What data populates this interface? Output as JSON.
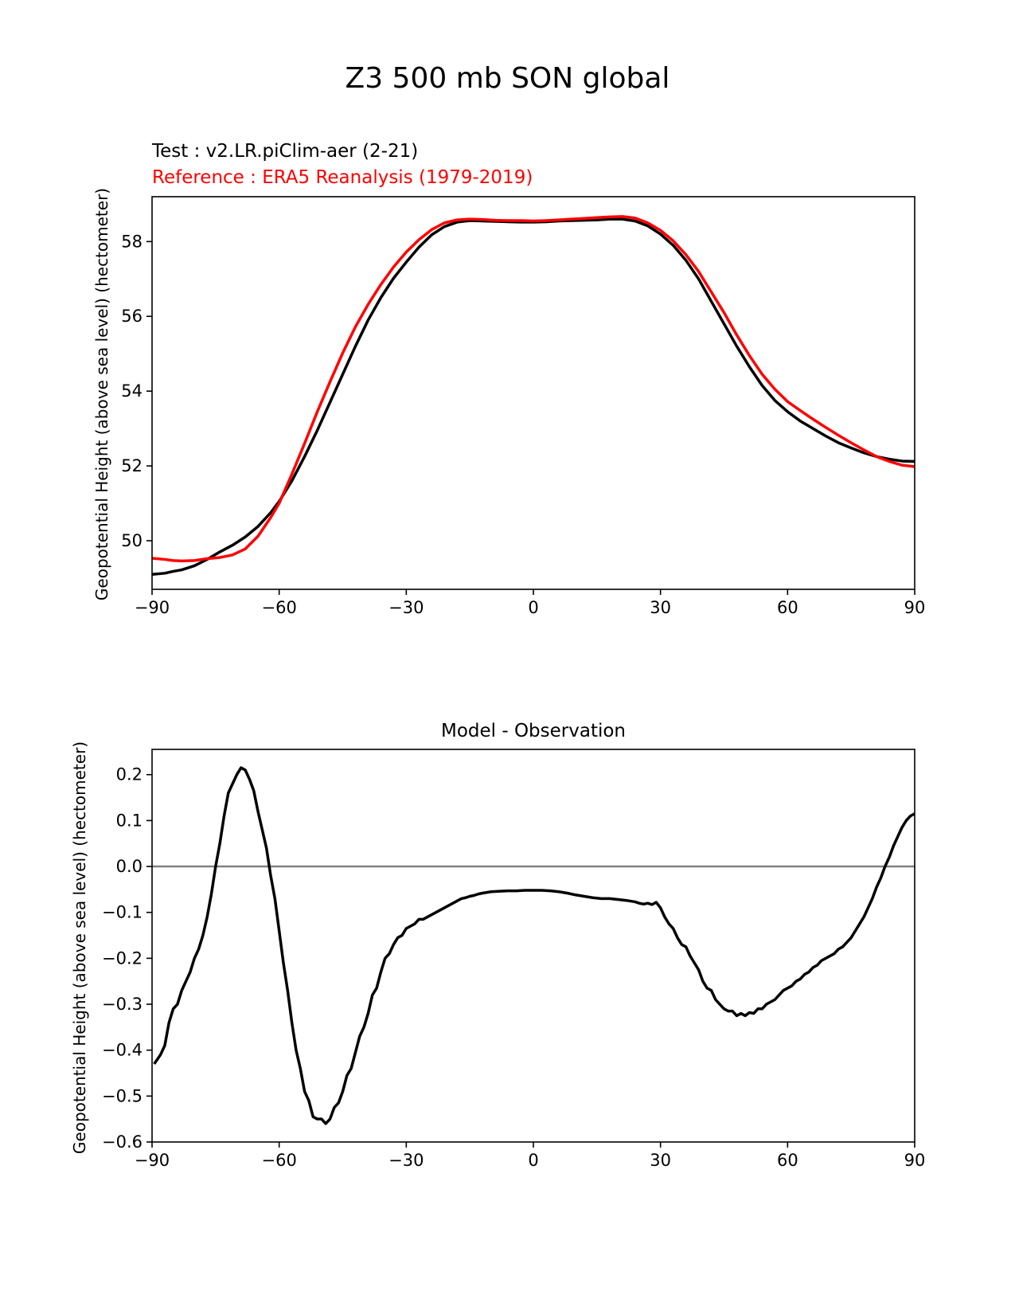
{
  "figure": {
    "title": "Z3 500 mb SON global"
  },
  "chart_data": [
    {
      "type": "line",
      "test_label": "Test : v2.LR.piClim-aer (2-21)",
      "reference_label": "Reference : ERA5 Reanalysis (1979-2019)",
      "xlabel": "",
      "ylabel": "Geopotential Height (above sea level) (hectometer)",
      "xlim": [
        -90,
        90
      ],
      "ylim": [
        48.7,
        59.2
      ],
      "xticks": [
        -90,
        -60,
        -30,
        0,
        30,
        60,
        90
      ],
      "xtick_labels": [
        "−90",
        "−60",
        "−30",
        "0",
        "30",
        "60",
        "90"
      ],
      "yticks": [
        50,
        52,
        54,
        56,
        58
      ],
      "ytick_labels": [
        "50",
        "52",
        "54",
        "56",
        "58"
      ],
      "grid": false,
      "series": [
        {
          "name": "Test : v2.LR.piClim-aer (2-21)",
          "color": "#000000",
          "x": [
            -90,
            -87,
            -85,
            -83,
            -80,
            -77,
            -74,
            -71,
            -68,
            -65,
            -62,
            -60,
            -57,
            -54,
            -51,
            -48,
            -45,
            -42,
            -39,
            -36,
            -33,
            -30,
            -27,
            -24,
            -21,
            -18,
            -15,
            -12,
            -9,
            -6,
            -3,
            0,
            3,
            6,
            9,
            12,
            15,
            18,
            21,
            24,
            27,
            30,
            33,
            36,
            39,
            42,
            45,
            48,
            51,
            54,
            57,
            60,
            63,
            66,
            69,
            72,
            75,
            78,
            81,
            84,
            87,
            90
          ],
          "y": [
            49.1,
            49.13,
            49.18,
            49.22,
            49.33,
            49.5,
            49.7,
            49.88,
            50.1,
            50.38,
            50.75,
            51.05,
            51.6,
            52.25,
            52.95,
            53.7,
            54.45,
            55.2,
            55.9,
            56.5,
            57.02,
            57.45,
            57.85,
            58.18,
            58.4,
            58.52,
            58.56,
            58.55,
            58.54,
            58.53,
            58.52,
            58.52,
            58.53,
            58.55,
            58.56,
            58.57,
            58.58,
            58.6,
            58.6,
            58.55,
            58.42,
            58.2,
            57.9,
            57.5,
            57.0,
            56.4,
            55.8,
            55.2,
            54.65,
            54.15,
            53.75,
            53.45,
            53.2,
            53.0,
            52.8,
            52.62,
            52.48,
            52.35,
            52.25,
            52.18,
            52.13,
            52.12
          ]
        },
        {
          "name": "Reference : ERA5 Reanalysis (1979-2019)",
          "color": "#ff0000",
          "x": [
            -90,
            -87,
            -85,
            -83,
            -80,
            -77,
            -74,
            -71,
            -68,
            -65,
            -62,
            -60,
            -57,
            -54,
            -51,
            -48,
            -45,
            -42,
            -39,
            -36,
            -33,
            -30,
            -27,
            -24,
            -21,
            -18,
            -15,
            -12,
            -9,
            -6,
            -3,
            0,
            3,
            6,
            9,
            12,
            15,
            18,
            21,
            24,
            27,
            30,
            33,
            36,
            39,
            42,
            45,
            48,
            51,
            54,
            57,
            60,
            63,
            66,
            69,
            72,
            75,
            78,
            81,
            84,
            87,
            90
          ],
          "y": [
            49.53,
            49.5,
            49.47,
            49.46,
            49.47,
            49.52,
            49.55,
            49.62,
            49.78,
            50.12,
            50.62,
            51.0,
            51.78,
            52.6,
            53.45,
            54.25,
            55.02,
            55.72,
            56.32,
            56.85,
            57.32,
            57.72,
            58.05,
            58.32,
            58.5,
            58.58,
            58.6,
            58.59,
            58.57,
            58.56,
            58.56,
            58.55,
            58.56,
            58.58,
            58.6,
            58.62,
            58.64,
            58.66,
            58.67,
            58.63,
            58.5,
            58.3,
            58.02,
            57.65,
            57.2,
            56.65,
            56.1,
            55.5,
            54.95,
            54.45,
            54.05,
            53.72,
            53.48,
            53.25,
            53.03,
            52.82,
            52.62,
            52.43,
            52.25,
            52.12,
            52.02,
            51.98
          ]
        }
      ]
    },
    {
      "type": "line",
      "title": "Model - Observation",
      "xlabel": "",
      "ylabel": "Geopotential Height (above sea level) (hectometer)",
      "xlim": [
        -90,
        90
      ],
      "ylim": [
        -0.6,
        0.255
      ],
      "xticks": [
        -90,
        -60,
        -30,
        0,
        30,
        60,
        90
      ],
      "xtick_labels": [
        "−90",
        "−60",
        "−30",
        "0",
        "30",
        "60",
        "90"
      ],
      "yticks": [
        0.2,
        0.1,
        0.0,
        -0.1,
        -0.2,
        -0.3,
        -0.4,
        -0.5,
        -0.6
      ],
      "ytick_labels": [
        "0.2",
        "0.1",
        "0.0",
        "−0.1",
        "−0.2",
        "−0.3",
        "−0.4",
        "−0.5",
        "−0.6"
      ],
      "zero_line_color": "#808080",
      "grid": false,
      "series": [
        {
          "color": "#000000",
          "x": [
            -89.5,
            -88,
            -87,
            -86,
            -85,
            -84,
            -83,
            -82,
            -81,
            -80,
            -79,
            -78,
            -77,
            -76,
            -75,
            -74,
            -73,
            -72,
            -71,
            -70,
            -69,
            -68,
            -67,
            -66,
            -65,
            -64,
            -63,
            -62,
            -61,
            -60,
            -59,
            -58,
            -57,
            -56,
            -55,
            -54,
            -53,
            -52,
            -51,
            -50,
            -49,
            -48,
            -47,
            -46,
            -45,
            -44,
            -43,
            -42,
            -41,
            -40,
            -39,
            -38,
            -37,
            -36,
            -35,
            -34,
            -33,
            -32,
            -31,
            -30,
            -29,
            -28,
            -27,
            -26,
            -25,
            -24,
            -23,
            -22,
            -21,
            -20,
            -19,
            -18,
            -17,
            -16,
            -15,
            -14,
            -13,
            -12,
            -10,
            -8,
            -6,
            -4,
            -2,
            0,
            2,
            4,
            6,
            8,
            10,
            12,
            14,
            16,
            18,
            20,
            22,
            24,
            25,
            26,
            27,
            28,
            29,
            30,
            31,
            32,
            33,
            34,
            35,
            36,
            37,
            38,
            39,
            40,
            41,
            42,
            43,
            44,
            45,
            46,
            47,
            48,
            49,
            50,
            51,
            52,
            53,
            54,
            55,
            56,
            57,
            58,
            59,
            60,
            61,
            62,
            63,
            64,
            65,
            66,
            67,
            68,
            69,
            70,
            71,
            72,
            73,
            74,
            75,
            76,
            77,
            78,
            79,
            80,
            81,
            82,
            83,
            84,
            85,
            86,
            87,
            88,
            89,
            90
          ],
          "y": [
            -0.43,
            -0.41,
            -0.39,
            -0.34,
            -0.31,
            -0.3,
            -0.27,
            -0.25,
            -0.23,
            -0.2,
            -0.18,
            -0.15,
            -0.11,
            -0.06,
            0.0,
            0.05,
            0.11,
            0.16,
            0.18,
            0.2,
            0.215,
            0.21,
            0.19,
            0.165,
            0.12,
            0.08,
            0.04,
            -0.02,
            -0.07,
            -0.14,
            -0.21,
            -0.27,
            -0.34,
            -0.4,
            -0.44,
            -0.49,
            -0.51,
            -0.545,
            -0.55,
            -0.55,
            -0.56,
            -0.55,
            -0.525,
            -0.515,
            -0.49,
            -0.455,
            -0.44,
            -0.405,
            -0.37,
            -0.35,
            -0.32,
            -0.28,
            -0.265,
            -0.23,
            -0.2,
            -0.19,
            -0.17,
            -0.155,
            -0.15,
            -0.135,
            -0.13,
            -0.125,
            -0.115,
            -0.115,
            -0.11,
            -0.105,
            -0.1,
            -0.095,
            -0.09,
            -0.085,
            -0.08,
            -0.075,
            -0.07,
            -0.068,
            -0.065,
            -0.063,
            -0.06,
            -0.058,
            -0.055,
            -0.054,
            -0.053,
            -0.053,
            -0.052,
            -0.052,
            -0.052,
            -0.053,
            -0.055,
            -0.058,
            -0.062,
            -0.065,
            -0.068,
            -0.07,
            -0.07,
            -0.072,
            -0.074,
            -0.077,
            -0.08,
            -0.082,
            -0.08,
            -0.083,
            -0.078,
            -0.09,
            -0.11,
            -0.125,
            -0.135,
            -0.155,
            -0.17,
            -0.175,
            -0.195,
            -0.21,
            -0.225,
            -0.25,
            -0.265,
            -0.27,
            -0.29,
            -0.3,
            -0.31,
            -0.315,
            -0.315,
            -0.325,
            -0.32,
            -0.325,
            -0.318,
            -0.32,
            -0.31,
            -0.31,
            -0.3,
            -0.295,
            -0.29,
            -0.28,
            -0.27,
            -0.265,
            -0.26,
            -0.25,
            -0.245,
            -0.235,
            -0.23,
            -0.22,
            -0.215,
            -0.205,
            -0.2,
            -0.195,
            -0.19,
            -0.18,
            -0.175,
            -0.165,
            -0.155,
            -0.14,
            -0.125,
            -0.11,
            -0.09,
            -0.07,
            -0.045,
            -0.025,
            0.0,
            0.02,
            0.045,
            0.065,
            0.085,
            0.1,
            0.11,
            0.115
          ]
        }
      ]
    }
  ]
}
